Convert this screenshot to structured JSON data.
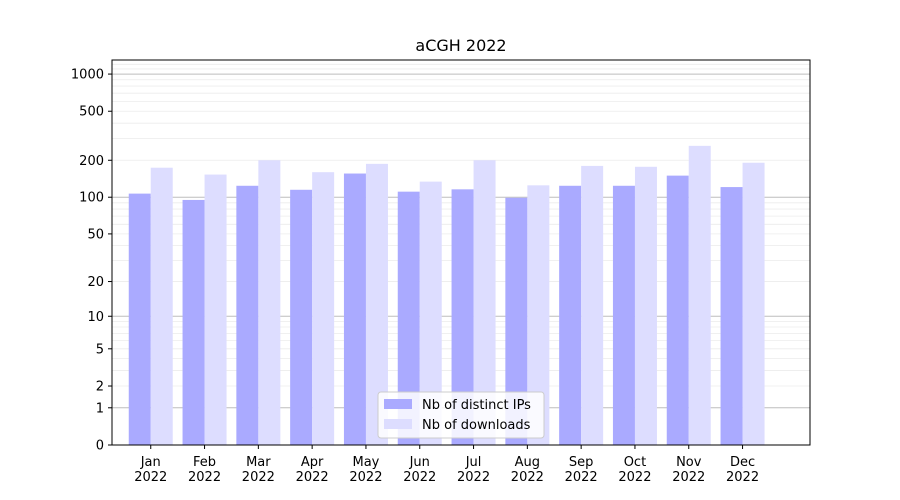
{
  "chart_data": {
    "type": "bar",
    "title": "aCGH 2022",
    "xlabel": "",
    "ylabel": "",
    "yscale": "symlog",
    "ylim": [
      0,
      1300
    ],
    "yticks": [
      0,
      1,
      2,
      5,
      10,
      20,
      50,
      100,
      200,
      500,
      1000
    ],
    "ytick_labels": [
      "0",
      "1",
      "2",
      "5",
      "10",
      "20",
      "50",
      "100",
      "200",
      "500",
      "1000"
    ],
    "categories": [
      "Jan 2022",
      "Feb 2022",
      "Mar 2022",
      "Apr 2022",
      "May 2022",
      "Jun 2022",
      "Jul 2022",
      "Aug 2022",
      "Sep 2022",
      "Oct 2022",
      "Nov 2022",
      "Dec 2022"
    ],
    "category_lines": [
      [
        "Jan",
        "2022"
      ],
      [
        "Feb",
        "2022"
      ],
      [
        "Mar",
        "2022"
      ],
      [
        "Apr",
        "2022"
      ],
      [
        "May",
        "2022"
      ],
      [
        "Jun",
        "2022"
      ],
      [
        "Jul",
        "2022"
      ],
      [
        "Aug",
        "2022"
      ],
      [
        "Sep",
        "2022"
      ],
      [
        "Oct",
        "2022"
      ],
      [
        "Nov",
        "2022"
      ],
      [
        "Dec",
        "2022"
      ]
    ],
    "series": [
      {
        "name": "Nb of distinct IPs",
        "color": "#aaaaff",
        "values": [
          107,
          95,
          124,
          115,
          156,
          111,
          116,
          99,
          124,
          124,
          150,
          121
        ]
      },
      {
        "name": "Nb of downloads",
        "color": "#ddddff",
        "values": [
          174,
          153,
          200,
          160,
          187,
          134,
          200,
          125,
          180,
          177,
          262,
          191
        ]
      }
    ],
    "grid": true,
    "legend_position": "bottom-center"
  }
}
